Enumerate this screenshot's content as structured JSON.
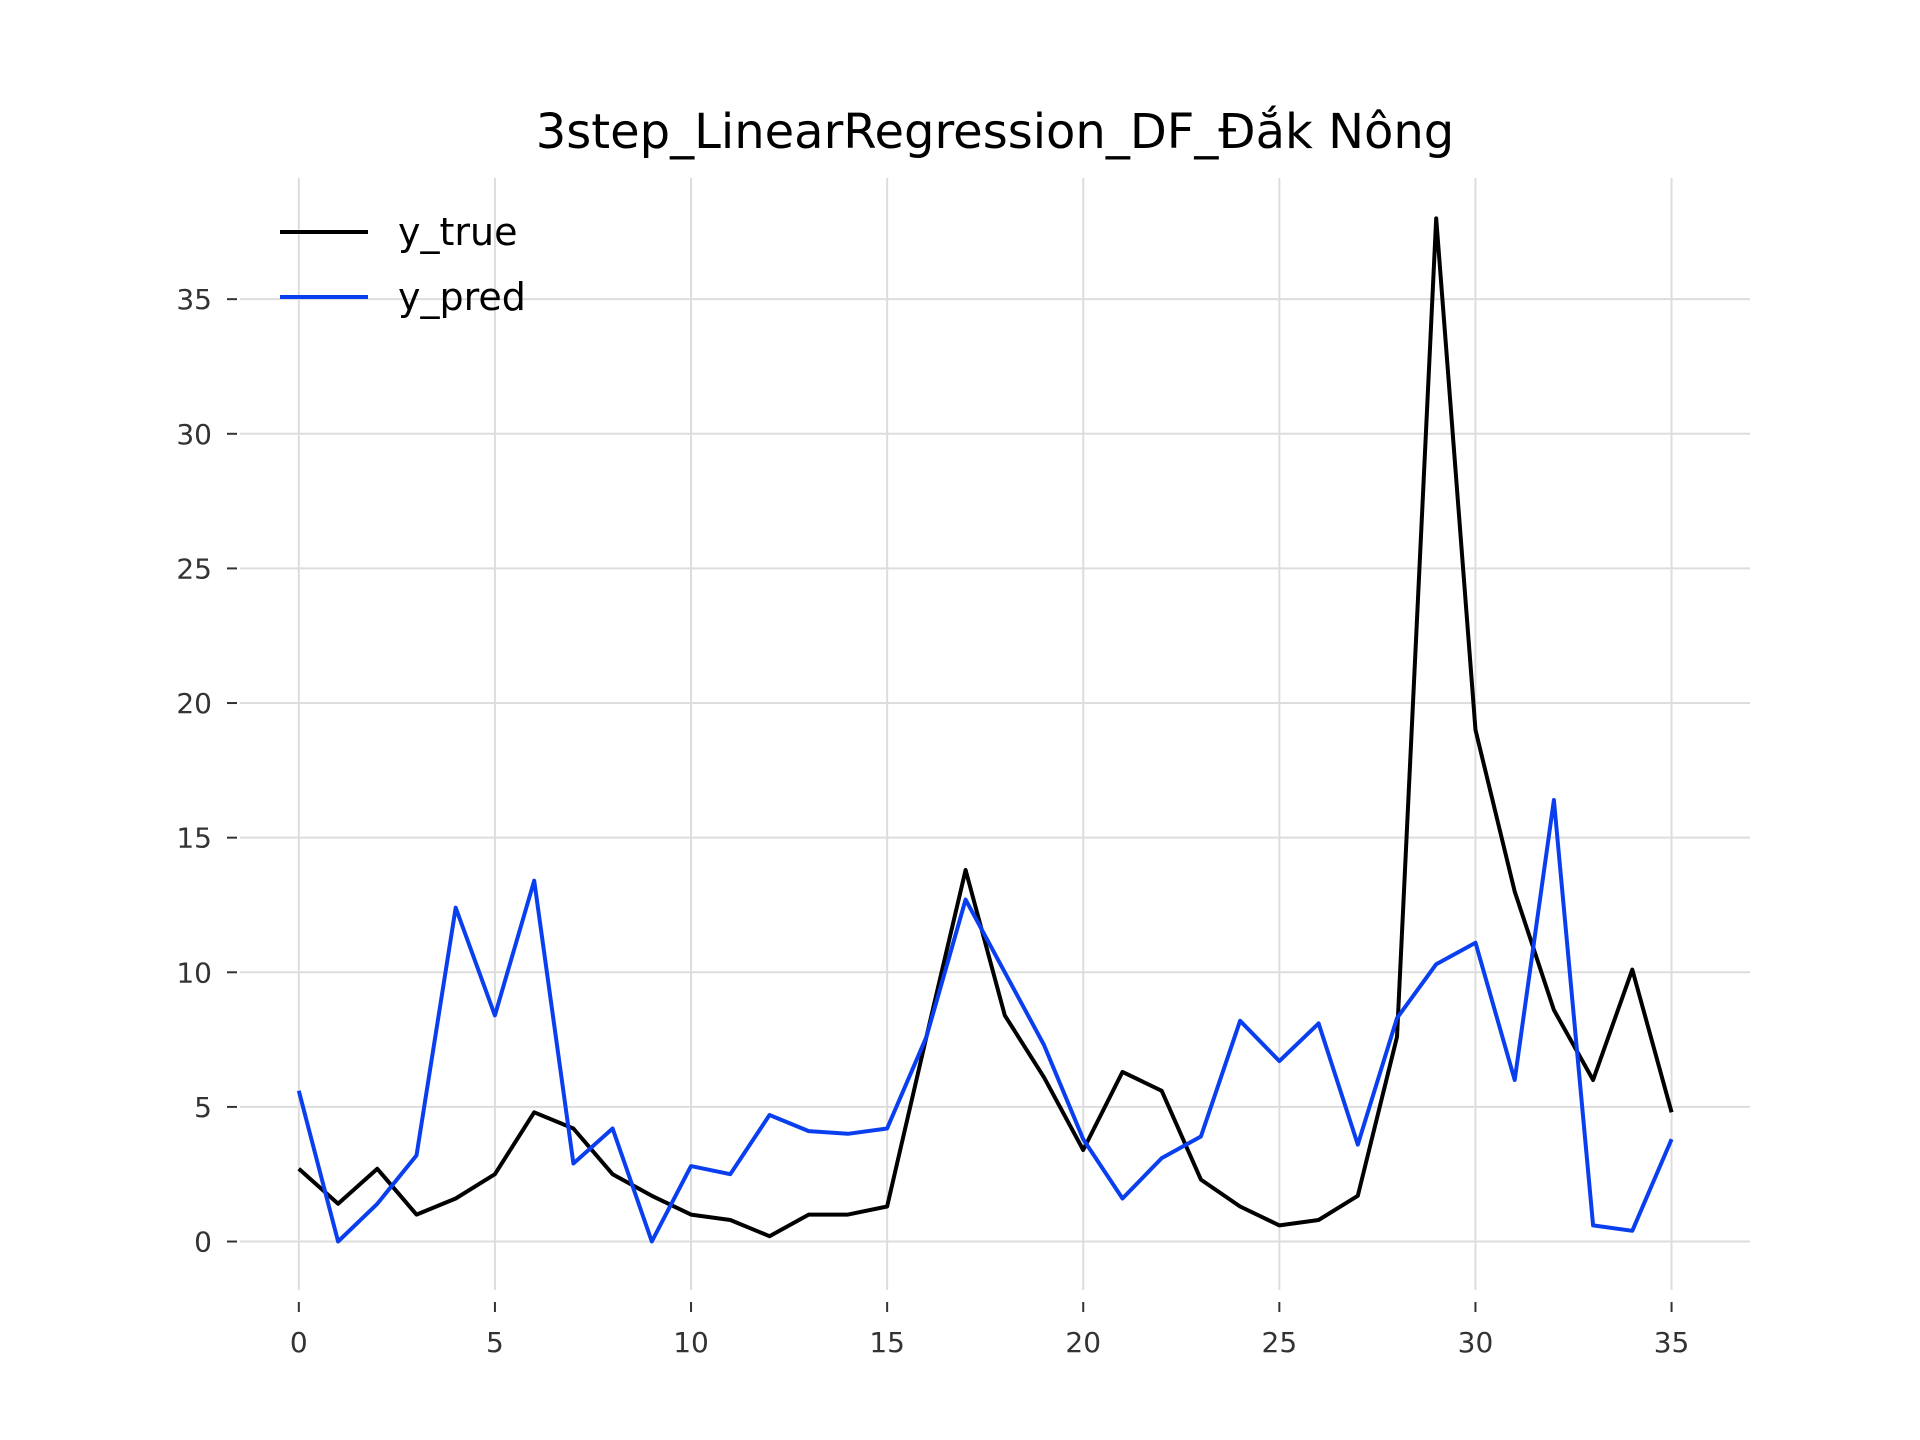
{
  "chart_data": {
    "type": "line",
    "title": "3step_LinearRegression_DF_Đắk Nông",
    "xlabel": "",
    "ylabel": "",
    "xlim": [
      -1.5,
      37
    ],
    "ylim": [
      -1.8,
      39.5
    ],
    "xticks": [
      0,
      5,
      10,
      15,
      20,
      25,
      30,
      35
    ],
    "yticks": [
      0,
      5,
      10,
      15,
      20,
      25,
      30,
      35
    ],
    "grid": true,
    "legend_position": "top-left",
    "x": [
      0,
      1,
      2,
      3,
      4,
      5,
      6,
      7,
      8,
      9,
      10,
      11,
      12,
      13,
      14,
      15,
      16,
      17,
      18,
      19,
      20,
      21,
      22,
      23,
      24,
      25,
      26,
      27,
      28,
      29,
      30,
      31,
      32,
      33,
      34,
      35
    ],
    "series": [
      {
        "name": "y_true",
        "color": "#000000",
        "values": [
          2.7,
          1.4,
          2.7,
          1.0,
          1.6,
          2.5,
          4.8,
          4.2,
          2.5,
          1.7,
          1.0,
          0.8,
          0.2,
          1.0,
          1.0,
          1.3,
          7.6,
          13.8,
          8.4,
          6.1,
          3.4,
          6.3,
          5.6,
          2.3,
          1.3,
          0.6,
          0.8,
          1.7,
          7.6,
          38.0,
          19.0,
          13.0,
          8.6,
          6.0,
          10.1,
          4.8
        ]
      },
      {
        "name": "y_pred",
        "color": "#0a3ff0",
        "values": [
          5.6,
          0.0,
          1.4,
          3.2,
          12.4,
          8.4,
          13.4,
          2.9,
          4.2,
          0.0,
          2.8,
          2.5,
          4.7,
          4.1,
          4.0,
          4.2,
          7.6,
          12.7,
          10.0,
          7.3,
          3.8,
          1.6,
          3.1,
          3.9,
          8.2,
          6.7,
          8.1,
          3.6,
          8.3,
          10.3,
          11.1,
          6.0,
          16.4,
          0.6,
          0.4,
          3.8
        ]
      }
    ]
  }
}
